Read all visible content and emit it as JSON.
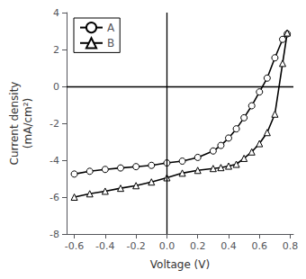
{
  "chart_data": {
    "type": "line",
    "xlabel": "Voltage (V)",
    "ylabel": "Current density\n(mA/cm²)",
    "x": [
      -0.6,
      -0.5,
      -0.4,
      -0.3,
      -0.2,
      -0.1,
      0.0,
      0.1,
      0.2,
      0.3,
      0.35,
      0.4,
      0.45,
      0.5,
      0.55,
      0.6,
      0.65,
      0.7,
      0.75,
      0.78
    ],
    "series": [
      {
        "name": "A",
        "color": "#000000",
        "marker": "circle",
        "values": [
          -4.75,
          -4.6,
          -4.5,
          -4.42,
          -4.35,
          -4.28,
          -4.15,
          -4.05,
          -3.85,
          -3.5,
          -3.2,
          -2.8,
          -2.3,
          -1.7,
          -1.05,
          -0.3,
          0.45,
          1.55,
          2.55,
          2.85
        ]
      },
      {
        "name": "B",
        "color": "#000000",
        "marker": "triangle",
        "values": [
          -6.0,
          -5.82,
          -5.68,
          -5.52,
          -5.38,
          -5.18,
          -4.95,
          -4.7,
          -4.55,
          -4.45,
          -4.4,
          -4.32,
          -4.22,
          -3.9,
          -3.55,
          -3.1,
          -2.5,
          -1.5,
          1.25,
          2.9
        ]
      }
    ],
    "xlim": [
      -0.65,
      0.82
    ],
    "ylim": [
      -8,
      4
    ],
    "xticks": [
      -0.6,
      -0.4,
      -0.2,
      {
        "value": 0.0,
        "label": "0.0"
      },
      0.2,
      0.4,
      0.6,
      0.8
    ],
    "yticks": [
      -8,
      -6,
      -4,
      -2,
      0,
      2,
      4
    ],
    "grid": false,
    "legend": "upper left"
  }
}
